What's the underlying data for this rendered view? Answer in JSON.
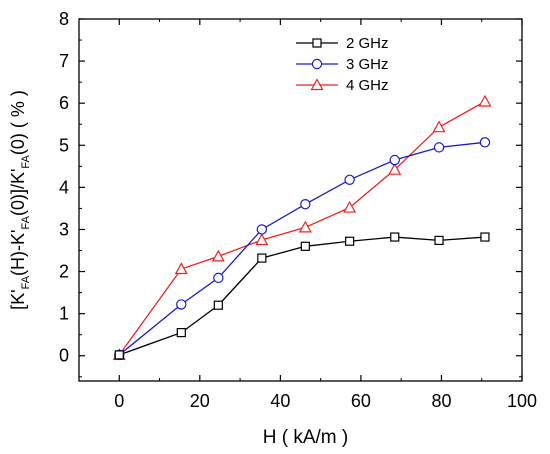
{
  "chart_data": {
    "type": "line",
    "xlabel": "H ( kA/m )",
    "ylabel": {
      "parts": [
        {
          "text": "[K'",
          "sub": false
        },
        {
          "text": "FA",
          "sub": true
        },
        {
          "text": "(H)-K'",
          "sub": false
        },
        {
          "text": "FA",
          "sub": true
        },
        {
          "text": "(0)]/K'",
          "sub": false
        },
        {
          "text": "FA",
          "sub": true
        },
        {
          "text": "(0) ( % )",
          "sub": false
        }
      ]
    },
    "xlim": [
      -10,
      100
    ],
    "ylim": [
      -0.6,
      8
    ],
    "xticks": [
      0,
      20,
      40,
      60,
      80,
      100
    ],
    "yticks": [
      0,
      1,
      2,
      3,
      4,
      5,
      6,
      7,
      8
    ],
    "legend_position": "top-center",
    "series": [
      {
        "name": "2 GHz",
        "color": "#000000",
        "marker": "square",
        "x": [
          0,
          15.4,
          24.6,
          35.4,
          46.2,
          57.2,
          68.4,
          79.4,
          90.8
        ],
        "y": [
          0.02,
          0.55,
          1.2,
          2.32,
          2.6,
          2.72,
          2.82,
          2.74,
          2.82
        ]
      },
      {
        "name": "3 GHz",
        "color": "#1a1acc",
        "marker": "circle",
        "x": [
          0,
          15.4,
          24.6,
          35.4,
          46.2,
          57.2,
          68.4,
          79.4,
          90.8
        ],
        "y": [
          0.02,
          1.22,
          1.85,
          3.0,
          3.6,
          4.18,
          4.65,
          4.95,
          5.07
        ]
      },
      {
        "name": "4 GHz",
        "color": "#ee2222",
        "marker": "triangle",
        "x": [
          0,
          15.4,
          24.6,
          35.4,
          46.2,
          57.2,
          68.4,
          79.4,
          90.8
        ],
        "y": [
          0.02,
          2.06,
          2.36,
          2.75,
          3.05,
          3.52,
          4.42,
          5.43,
          6.04
        ]
      }
    ]
  }
}
